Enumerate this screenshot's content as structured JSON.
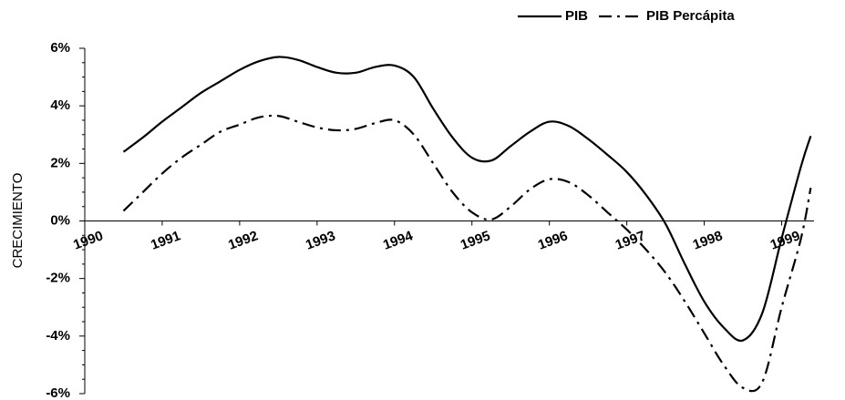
{
  "chart_data": {
    "type": "line",
    "y_label": "CRECIMIENTO",
    "x": [
      1990.5,
      1990.75,
      1991,
      1991.25,
      1991.5,
      1991.75,
      1992,
      1992.25,
      1992.5,
      1992.75,
      1993,
      1993.25,
      1993.5,
      1993.75,
      1994,
      1994.25,
      1994.5,
      1994.75,
      1995,
      1995.25,
      1995.5,
      1995.75,
      1996,
      1996.25,
      1996.5,
      1996.75,
      1997,
      1997.25,
      1997.5,
      1997.75,
      1998,
      1998.25,
      1998.5,
      1998.75,
      1999,
      1999.25,
      1999.375
    ],
    "series": [
      {
        "name": "PIB",
        "color": "#000000",
        "dash": "solid",
        "values": [
          2.4,
          2.9,
          3.45,
          3.95,
          4.45,
          4.85,
          5.25,
          5.55,
          5.7,
          5.6,
          5.35,
          5.15,
          5.15,
          5.35,
          5.4,
          5.0,
          3.9,
          2.9,
          2.2,
          2.1,
          2.6,
          3.1,
          3.45,
          3.3,
          2.85,
          2.3,
          1.7,
          0.9,
          -0.1,
          -1.5,
          -2.8,
          -3.7,
          -4.15,
          -3.2,
          -0.6,
          1.9,
          2.95
        ]
      },
      {
        "name": "PIB Percápita",
        "color": "#000000",
        "dash": "dashdot",
        "values": [
          0.35,
          1.0,
          1.65,
          2.2,
          2.65,
          3.1,
          3.35,
          3.6,
          3.65,
          3.45,
          3.25,
          3.15,
          3.2,
          3.4,
          3.5,
          3.0,
          2.0,
          1.0,
          0.3,
          0.05,
          0.5,
          1.1,
          1.45,
          1.35,
          0.9,
          0.3,
          -0.3,
          -1.0,
          -1.8,
          -2.8,
          -3.9,
          -5.0,
          -5.8,
          -5.6,
          -3.0,
          -0.6,
          1.15
        ]
      }
    ],
    "xlim": [
      1990,
      1999.5
    ],
    "xticks": [
      1990,
      1991,
      1992,
      1993,
      1994,
      1995,
      1996,
      1997,
      1998,
      1999
    ],
    "ylim": [
      -6,
      6
    ],
    "yticks": [
      {
        "value": -6,
        "label": "-6%"
      },
      {
        "value": -4,
        "label": "-4%"
      },
      {
        "value": -2,
        "label": "-2%"
      },
      {
        "value": 0,
        "label": "0%"
      },
      {
        "value": 2,
        "label": "2%"
      },
      {
        "value": 4,
        "label": "4%"
      },
      {
        "value": 6,
        "label": "6%"
      }
    ],
    "legend": "top-right"
  }
}
